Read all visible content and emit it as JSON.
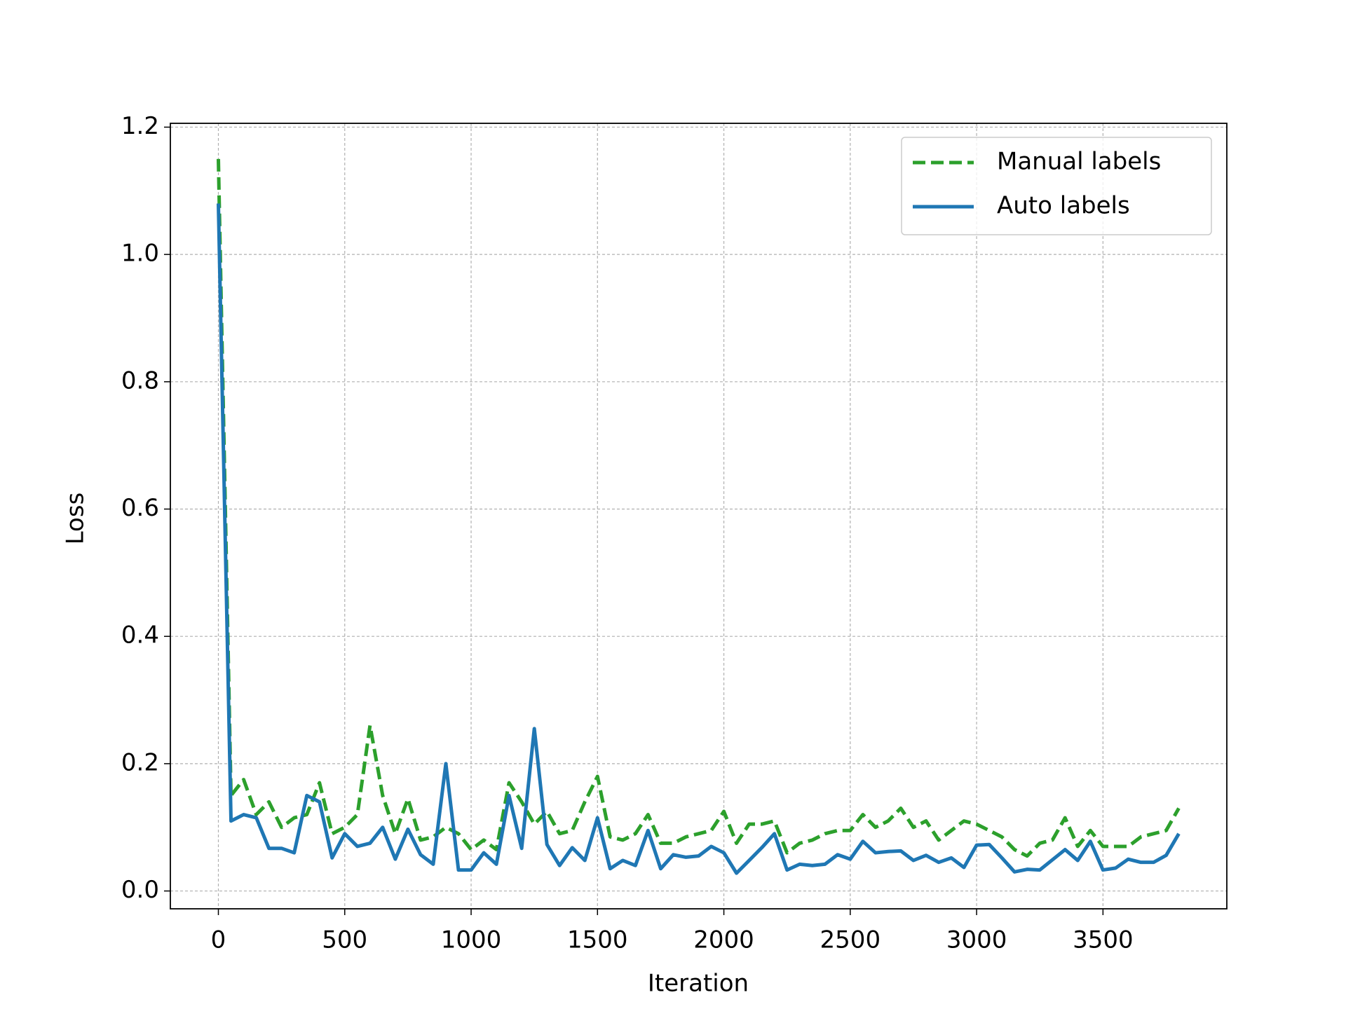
{
  "chart_data": {
    "type": "line",
    "x_label": "Iteration",
    "y_label": "Loss",
    "x": [
      0,
      50,
      100,
      150,
      200,
      250,
      300,
      350,
      400,
      450,
      500,
      550,
      600,
      650,
      700,
      750,
      800,
      850,
      900,
      950,
      1000,
      1050,
      1100,
      1150,
      1200,
      1250,
      1300,
      1350,
      1400,
      1450,
      1500,
      1550,
      1600,
      1650,
      1700,
      1750,
      1800,
      1850,
      1900,
      1950,
      2000,
      2050,
      2100,
      2150,
      2200,
      2250,
      2300,
      2350,
      2400,
      2450,
      2500,
      2550,
      2600,
      2650,
      2700,
      2750,
      2800,
      2850,
      2900,
      2950,
      3000,
      3050,
      3100,
      3150,
      3200,
      3250,
      3300,
      3350,
      3400,
      3450,
      3500,
      3550,
      3600,
      3650,
      3700,
      3750,
      3800
    ],
    "series": [
      {
        "name": "Manual labels",
        "color": "#2ca02c",
        "linestyle": "dashed",
        "values": [
          1.15,
          0.15,
          0.175,
          0.12,
          0.14,
          0.1,
          0.115,
          0.12,
          0.17,
          0.09,
          0.1,
          0.12,
          0.26,
          0.15,
          0.09,
          0.145,
          0.08,
          0.085,
          0.1,
          0.09,
          0.065,
          0.08,
          0.065,
          0.17,
          0.14,
          0.105,
          0.125,
          0.09,
          0.095,
          0.14,
          0.18,
          0.085,
          0.08,
          0.09,
          0.12,
          0.075,
          0.075,
          0.085,
          0.09,
          0.095,
          0.125,
          0.075,
          0.105,
          0.105,
          0.11,
          0.06,
          0.075,
          0.08,
          0.09,
          0.095,
          0.095,
          0.12,
          0.1,
          0.11,
          0.13,
          0.1,
          0.11,
          0.08,
          0.095,
          0.11,
          0.105,
          0.095,
          0.085,
          0.065,
          0.055,
          0.075,
          0.08,
          0.115,
          0.07,
          0.095,
          0.07,
          0.07,
          0.07,
          0.085,
          0.09,
          0.095,
          0.13
        ]
      },
      {
        "name": "Auto labels",
        "color": "#1f77b4",
        "linestyle": "solid",
        "values": [
          1.08,
          0.11,
          0.12,
          0.115,
          0.067,
          0.067,
          0.06,
          0.15,
          0.14,
          0.052,
          0.09,
          0.07,
          0.075,
          0.1,
          0.05,
          0.097,
          0.057,
          0.042,
          0.2,
          0.033,
          0.033,
          0.06,
          0.042,
          0.15,
          0.067,
          0.255,
          0.073,
          0.04,
          0.068,
          0.048,
          0.115,
          0.035,
          0.048,
          0.04,
          0.095,
          0.035,
          0.057,
          0.053,
          0.055,
          0.07,
          0.06,
          0.028,
          0.048,
          0.068,
          0.09,
          0.033,
          0.042,
          0.04,
          0.042,
          0.057,
          0.05,
          0.078,
          0.06,
          0.062,
          0.063,
          0.048,
          0.056,
          0.045,
          0.052,
          0.037,
          0.072,
          0.073,
          0.052,
          0.03,
          0.034,
          0.033,
          0.049,
          0.065,
          0.048,
          0.078,
          0.033,
          0.036,
          0.05,
          0.045,
          0.045,
          0.056,
          0.09
        ]
      }
    ],
    "xlim": [
      -190,
      3990
    ],
    "xticks": [
      0,
      500,
      1000,
      1500,
      2000,
      2500,
      3000,
      3500
    ],
    "ylim": [
      -0.028,
      1.206
    ],
    "yticks": [
      {
        "value": 0,
        "label": "0.0"
      },
      0.2,
      0.4,
      0.6,
      0.8,
      {
        "value": 1,
        "label": "1.0"
      },
      1.2
    ],
    "grid": true,
    "legend": "upper right"
  }
}
